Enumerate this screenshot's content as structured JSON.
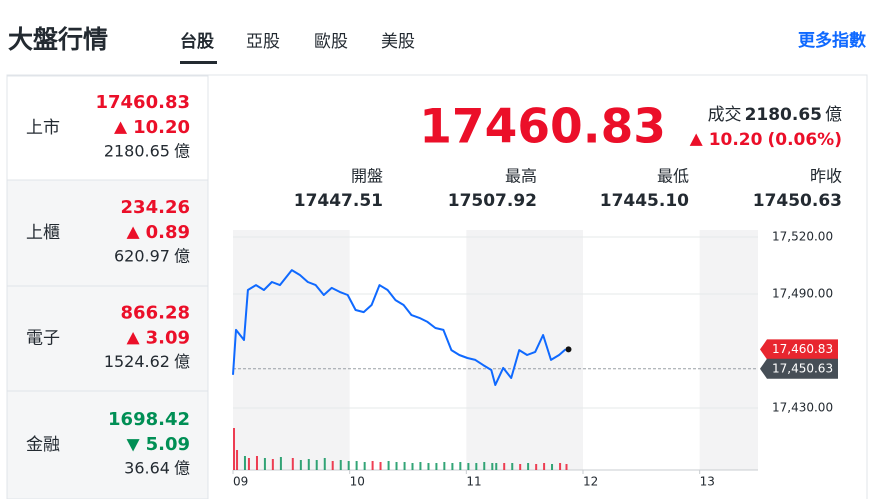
{
  "header": {
    "title": "大盤行情",
    "tabs": [
      "台股",
      "亞股",
      "歐股",
      "美股"
    ],
    "selected": 0,
    "more": "更多指數"
  },
  "colors": {
    "up": "#eb0f29",
    "down": "#008f55",
    "link": "#0f69ff"
  },
  "sidebar": [
    {
      "name": "上市",
      "price": "17460.83",
      "change": "10.20",
      "direction": "up",
      "volume": "2180.65",
      "unit": "億"
    },
    {
      "name": "上櫃",
      "price": "234.26",
      "change": "0.89",
      "direction": "up",
      "volume": "620.97",
      "unit": "億"
    },
    {
      "name": "電子",
      "price": "866.28",
      "change": "3.09",
      "direction": "up",
      "volume": "1524.62",
      "unit": "億"
    },
    {
      "name": "金融",
      "price": "1698.42",
      "change": "5.09",
      "direction": "down",
      "volume": "36.64",
      "unit": "億"
    }
  ],
  "quote": {
    "price": "17460.83",
    "volume_label": "成交",
    "volume": "2180.65",
    "unit": "億",
    "change": "10.20",
    "percent": "(0.06%)",
    "direction": "up"
  },
  "stats": [
    {
      "label": "開盤",
      "value": "17447.51"
    },
    {
      "label": "最高",
      "value": "17507.92"
    },
    {
      "label": "最低",
      "value": "17445.10"
    },
    {
      "label": "昨收",
      "value": "17450.63"
    }
  ],
  "chart_data": {
    "type": "line",
    "color": "#0f69ff",
    "x": [
      9.0,
      9.026,
      9.094,
      9.128,
      9.197,
      9.265,
      9.333,
      9.402,
      9.504,
      9.573,
      9.641,
      9.709,
      9.778,
      9.846,
      9.915,
      9.983,
      10.051,
      10.12,
      10.188,
      10.256,
      10.325,
      10.393,
      10.462,
      10.53,
      10.598,
      10.667,
      10.735,
      10.803,
      10.872,
      10.94,
      11.009,
      11.077,
      11.145,
      11.214,
      11.248,
      11.316,
      11.385,
      11.453,
      11.521,
      11.59,
      11.658,
      11.726,
      11.795,
      11.85
    ],
    "values": [
      17447.5,
      17471.1,
      17465.8,
      17492.1,
      17494.7,
      17492.1,
      17496.3,
      17494.7,
      17502.6,
      17500.0,
      17496.3,
      17494.7,
      17489.5,
      17493.2,
      17491.1,
      17489.5,
      17481.6,
      17480.5,
      17484.2,
      17494.7,
      17492.1,
      17486.8,
      17484.2,
      17478.9,
      17477.4,
      17475.3,
      17472.1,
      17471.1,
      17460.5,
      17457.9,
      17456.3,
      17455.3,
      17452.6,
      17450.0,
      17442.1,
      17451.1,
      17445.8,
      17460.5,
      17457.9,
      17459.5,
      17468.4,
      17455.3,
      17457.9,
      17460.83
    ],
    "volume": [
      42,
      20,
      14,
      12,
      14,
      12,
      11,
      13,
      12,
      10,
      11,
      10,
      12,
      9,
      10,
      9,
      9,
      8,
      9,
      8,
      9,
      8,
      8,
      7,
      8,
      7,
      7,
      8,
      7,
      8,
      7,
      7,
      8,
      7,
      7,
      7,
      7,
      6,
      7,
      6,
      7,
      6,
      7,
      6
    ],
    "xlim": [
      9,
      13.5
    ],
    "ylim": [
      17420,
      17525
    ],
    "xticks": [
      {
        "value": 9,
        "label": "09"
      },
      {
        "value": 10,
        "label": "10"
      },
      {
        "value": 11,
        "label": "11"
      },
      {
        "value": 12,
        "label": "12"
      },
      {
        "value": 13,
        "label": "13"
      }
    ],
    "yticks": [
      {
        "value": 17430,
        "label": "17,430.00"
      },
      {
        "value": 17490,
        "label": "17,490.00"
      },
      {
        "value": 17520,
        "label": "17,520.00"
      }
    ],
    "last_flag": {
      "value": 17460.83,
      "label": "17,460.83"
    },
    "reference": {
      "value": 17450.63,
      "label": "17,450.63"
    }
  }
}
